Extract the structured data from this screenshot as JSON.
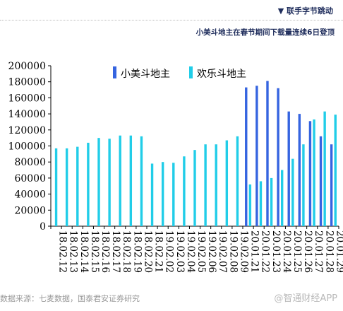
{
  "header": {
    "brand_marker": "▼",
    "brand": "联手字节跳动",
    "subtitle": "小美斗地主在春节期间下载量连续6日登顶"
  },
  "footer": {
    "source": "数据来源：七麦数据，国泰君安证券研究",
    "watermark": "@智通财经APP"
  },
  "colors": {
    "series1": "#3564e0",
    "series2": "#21cde8"
  },
  "chart_data": {
    "type": "bar",
    "categories": [
      "18.02.12",
      "18.02.13",
      "18.02.14",
      "18.02.15",
      "18.02.16",
      "18.02.17",
      "18.02.18",
      "18.02.19",
      "18.02.20",
      "18.02.21",
      "19.02.02",
      "19.02.03",
      "19.02.04",
      "19.02.05",
      "19.02.06",
      "19.02.07",
      "19.02.08",
      "19.02.09",
      "20.01.21",
      "20.01.22",
      "20.01.23",
      "20.01.24",
      "20.01.25",
      "20.01.26",
      "20.01.27",
      "20.01.28",
      "20.01.29"
    ],
    "series": [
      {
        "name": "小美斗地主",
        "values": [
          null,
          null,
          null,
          null,
          null,
          null,
          null,
          null,
          null,
          null,
          null,
          null,
          null,
          null,
          null,
          null,
          null,
          null,
          173000,
          175000,
          181000,
          172000,
          143000,
          140000,
          131000,
          112000,
          102000
        ]
      },
      {
        "name": "欢乐斗地主",
        "values": [
          97000,
          97000,
          99000,
          104000,
          110000,
          109000,
          113000,
          113000,
          112000,
          78000,
          80000,
          79000,
          87000,
          95000,
          102000,
          102000,
          107000,
          112000,
          52000,
          56000,
          60000,
          70000,
          84000,
          102000,
          133000,
          143000,
          139000
        ]
      }
    ],
    "yticks": [
      "200000",
      "180000",
      "160000",
      "140000",
      "120000",
      "100000",
      "80000",
      "60000",
      "40000",
      "20000",
      "0"
    ],
    "ylim": [
      0,
      200000
    ],
    "legend_position": "top-center",
    "grid": false
  }
}
